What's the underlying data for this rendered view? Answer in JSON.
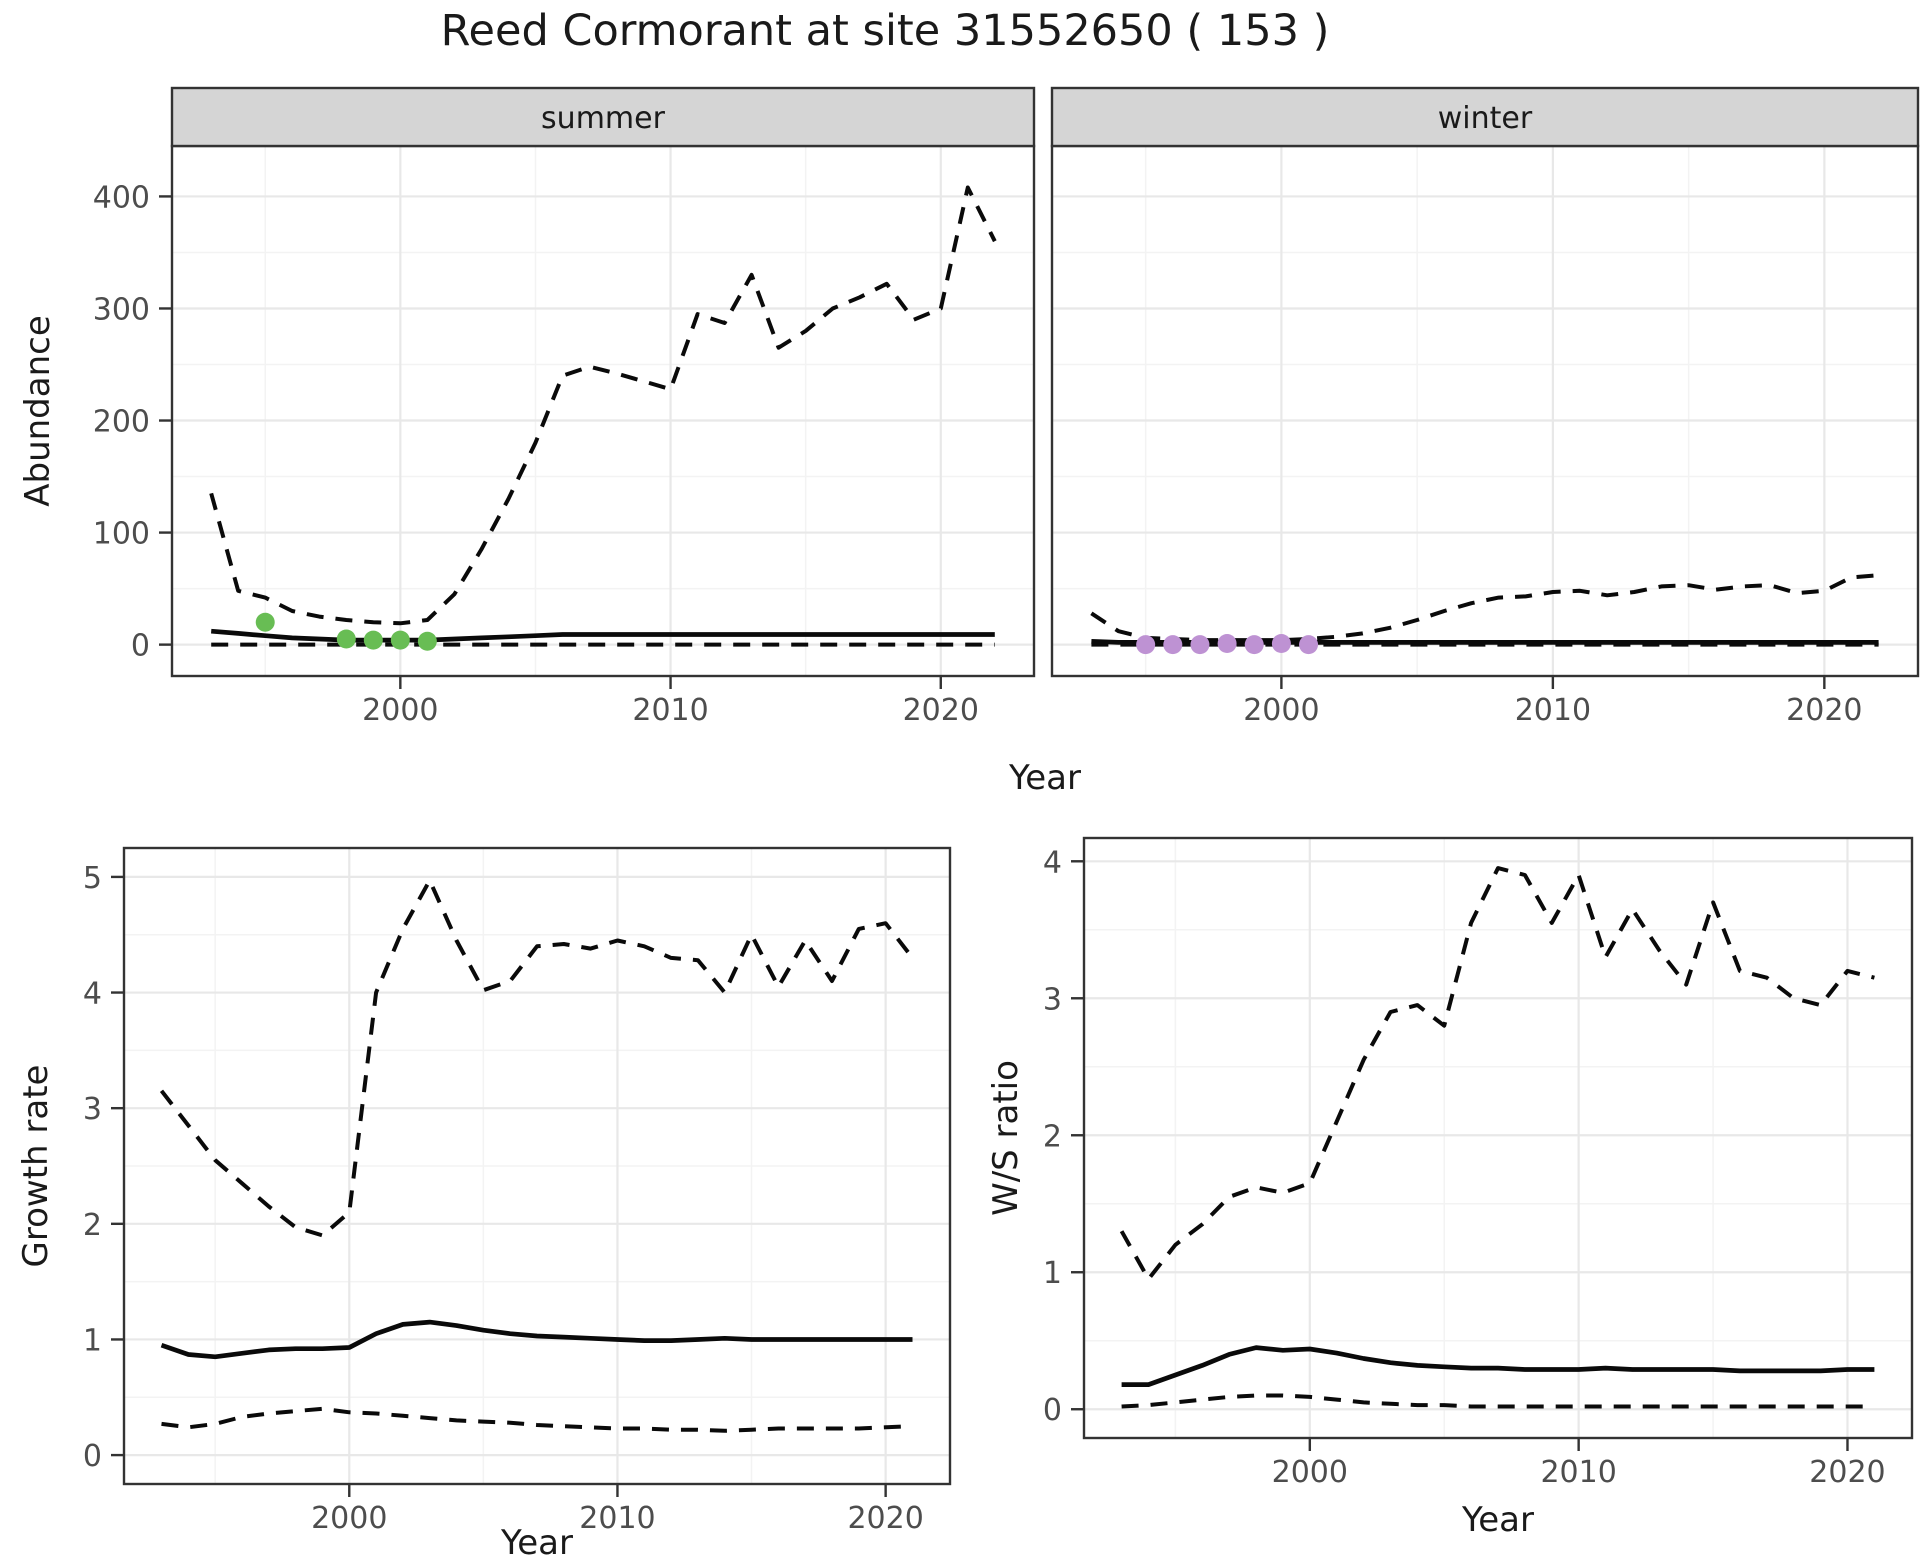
{
  "title": "Reed Cormorant at site 31552650 ( 153 )",
  "top_row": {
    "ylabel": "Abundance",
    "xlabel": "Year",
    "facets": [
      "summer",
      "winter"
    ]
  },
  "bottom_left": {
    "ylabel": "Growth rate",
    "xlabel": "Year"
  },
  "bottom_right": {
    "ylabel": "W/S ratio",
    "xlabel": "Year"
  },
  "colors": {
    "green_points": "#68BD54",
    "purple_points": "#BE92D3",
    "line": "#0a0a0a",
    "strip_bg": "#D5D5D5",
    "panel_border": "#333333",
    "grid_major": "#E8E8E8",
    "grid_minor": "#F3F3F3",
    "tick_text": "#4D4D4D",
    "title_text": "#1A1A1A"
  },
  "chart_data": [
    {
      "id": "abundance_summer",
      "type": "line",
      "facet": "summer",
      "ylabel": "Abundance",
      "xlabel": "Year",
      "xlim": [
        1991.55,
        2023.45
      ],
      "ylim": [
        -28,
        445
      ],
      "x_ticks": [
        2000,
        2010,
        2020
      ],
      "x_minor": [
        1995,
        2005,
        2015
      ],
      "y_ticks": [
        0,
        100,
        200,
        300,
        400
      ],
      "y_minor": [
        50,
        150,
        250,
        350
      ],
      "x": [
        1993,
        1994,
        1995,
        1996,
        1997,
        1998,
        1999,
        2000,
        2001,
        2002,
        2003,
        2004,
        2005,
        2006,
        2007,
        2008,
        2009,
        2010,
        2011,
        2012,
        2013,
        2014,
        2015,
        2016,
        2017,
        2018,
        2019,
        2020,
        2021,
        2022
      ],
      "series": [
        {
          "name": "upper-ci",
          "style": "dashed",
          "values": [
            135,
            48,
            42,
            30,
            25,
            22,
            20,
            19,
            22,
            45,
            85,
            130,
            180,
            240,
            248,
            242,
            235,
            228,
            295,
            287,
            330,
            265,
            280,
            300,
            310,
            322,
            290,
            300,
            408,
            360
          ]
        },
        {
          "name": "median",
          "style": "solid",
          "values": [
            12,
            10,
            8,
            6,
            5,
            4,
            4,
            4,
            4,
            5,
            6,
            7,
            8,
            9,
            9,
            9,
            9,
            9,
            9,
            9,
            9,
            9,
            9,
            9,
            9,
            9,
            9,
            9,
            9,
            9
          ]
        },
        {
          "name": "lower-ci",
          "style": "dashed",
          "values": [
            0,
            0,
            0,
            0,
            0,
            0,
            0,
            0,
            0,
            0,
            0,
            0,
            0,
            0,
            0,
            0,
            0,
            0,
            0,
            0,
            0,
            0,
            0,
            0,
            0,
            0,
            0,
            0,
            0,
            0
          ]
        }
      ],
      "points": {
        "name": "observed-counts-summer",
        "color_key": "green_points",
        "x": [
          1995,
          1998,
          1999,
          2000,
          2001
        ],
        "y": [
          20,
          5,
          4,
          4,
          3
        ]
      }
    },
    {
      "id": "abundance_winter",
      "type": "line",
      "facet": "winter",
      "ylabel": "Abundance",
      "xlabel": "Year",
      "xlim": [
        1991.55,
        2023.45
      ],
      "ylim": [
        -28,
        445
      ],
      "x_ticks": [
        2000,
        2010,
        2020
      ],
      "x_minor": [
        1995,
        2005,
        2015
      ],
      "y_ticks": [
        0,
        100,
        200,
        300,
        400
      ],
      "y_minor": [
        50,
        150,
        250,
        350
      ],
      "x": [
        1993,
        1994,
        1995,
        1996,
        1997,
        1998,
        1999,
        2000,
        2001,
        2002,
        2003,
        2004,
        2005,
        2006,
        2007,
        2008,
        2009,
        2010,
        2011,
        2012,
        2013,
        2014,
        2015,
        2016,
        2017,
        2018,
        2019,
        2020,
        2021,
        2022
      ],
      "series": [
        {
          "name": "upper-ci",
          "style": "dashed",
          "values": [
            28,
            12,
            6,
            5,
            4,
            4,
            4,
            4,
            5,
            7,
            10,
            15,
            22,
            30,
            37,
            42,
            43,
            47,
            48,
            44,
            47,
            52,
            53,
            49,
            52,
            53,
            46,
            48,
            60,
            62
          ]
        },
        {
          "name": "median",
          "style": "solid",
          "values": [
            3,
            2,
            2,
            2,
            2,
            2,
            2,
            2,
            2,
            2,
            2,
            2,
            2,
            2,
            2,
            2,
            2,
            2,
            2,
            2,
            2,
            2,
            2,
            2,
            2,
            2,
            2,
            2,
            2,
            2
          ]
        },
        {
          "name": "lower-ci",
          "style": "dashed",
          "values": [
            0,
            0,
            0,
            0,
            0,
            0,
            0,
            0,
            0,
            0,
            0,
            0,
            0,
            0,
            0,
            0,
            0,
            0,
            0,
            0,
            0,
            0,
            0,
            0,
            0,
            0,
            0,
            0,
            0,
            0
          ]
        }
      ],
      "points": {
        "name": "observed-counts-winter",
        "color_key": "purple_points",
        "x": [
          1995,
          1996,
          1997,
          1998,
          1999,
          2000,
          2001
        ],
        "y": [
          0,
          0,
          0,
          1,
          0,
          1,
          0
        ]
      }
    },
    {
      "id": "growth_rate",
      "type": "line",
      "facet": null,
      "ylabel": "Growth rate",
      "xlabel": "Year",
      "xlim": [
        1991.6,
        2022.4
      ],
      "ylim": [
        -0.25,
        5.25
      ],
      "x_ticks": [
        2000,
        2010,
        2020
      ],
      "x_minor": [
        1995,
        2005,
        2015
      ],
      "y_ticks": [
        0,
        1,
        2,
        3,
        4,
        5
      ],
      "y_minor": [
        0.5,
        1.5,
        2.5,
        3.5,
        4.5
      ],
      "x": [
        1993,
        1994,
        1995,
        1996,
        1997,
        1998,
        1999,
        2000,
        2001,
        2002,
        2003,
        2004,
        2005,
        2006,
        2007,
        2008,
        2009,
        2010,
        2011,
        2012,
        2013,
        2014,
        2015,
        2016,
        2017,
        2018,
        2019,
        2020,
        2021
      ],
      "series": [
        {
          "name": "upper-ci",
          "style": "dashed",
          "values": [
            3.15,
            2.85,
            2.55,
            2.35,
            2.15,
            1.97,
            1.9,
            2.1,
            4.0,
            4.55,
            4.97,
            4.45,
            4.02,
            4.1,
            4.4,
            4.42,
            4.38,
            4.45,
            4.4,
            4.3,
            4.28,
            4.0,
            4.5,
            4.05,
            4.45,
            4.1,
            4.55,
            4.6,
            4.3
          ]
        },
        {
          "name": "median",
          "style": "solid",
          "values": [
            0.95,
            0.87,
            0.85,
            0.88,
            0.91,
            0.92,
            0.92,
            0.93,
            1.05,
            1.13,
            1.15,
            1.12,
            1.08,
            1.05,
            1.03,
            1.02,
            1.01,
            1.0,
            0.99,
            0.99,
            1.0,
            1.01,
            1.0,
            1.0,
            1.0,
            1.0,
            1.0,
            1.0,
            1.0
          ]
        },
        {
          "name": "lower-ci",
          "style": "dashed",
          "values": [
            0.27,
            0.24,
            0.27,
            0.33,
            0.36,
            0.38,
            0.4,
            0.37,
            0.36,
            0.34,
            0.32,
            0.3,
            0.29,
            0.28,
            0.26,
            0.25,
            0.24,
            0.23,
            0.23,
            0.22,
            0.22,
            0.21,
            0.22,
            0.23,
            0.23,
            0.23,
            0.23,
            0.24,
            0.25
          ]
        }
      ]
    },
    {
      "id": "ws_ratio",
      "type": "line",
      "facet": null,
      "ylabel": "W/S ratio",
      "xlabel": "Year",
      "xlim": [
        1991.6,
        2022.4
      ],
      "ylim": [
        -0.21,
        4.17
      ],
      "x_ticks": [
        2000,
        2010,
        2020
      ],
      "x_minor": [
        1995,
        2005,
        2015
      ],
      "y_ticks": [
        0,
        1,
        2,
        3,
        4
      ],
      "y_minor": [
        0.5,
        1.5,
        2.5,
        3.5
      ],
      "x": [
        1993,
        1994,
        1995,
        1996,
        1997,
        1998,
        1999,
        2000,
        2001,
        2002,
        2003,
        2004,
        2005,
        2006,
        2007,
        2008,
        2009,
        2010,
        2011,
        2012,
        2013,
        2014,
        2015,
        2016,
        2017,
        2018,
        2019,
        2020,
        2021
      ],
      "series": [
        {
          "name": "upper-ci",
          "style": "dashed",
          "values": [
            1.3,
            0.95,
            1.2,
            1.35,
            1.55,
            1.62,
            1.58,
            1.65,
            2.1,
            2.55,
            2.9,
            2.95,
            2.8,
            3.55,
            3.95,
            3.9,
            3.55,
            3.9,
            3.3,
            3.65,
            3.35,
            3.1,
            3.7,
            3.2,
            3.15,
            3.0,
            2.95,
            3.2,
            3.15
          ]
        },
        {
          "name": "median",
          "style": "solid",
          "values": [
            0.18,
            0.18,
            0.25,
            0.32,
            0.4,
            0.45,
            0.43,
            0.44,
            0.41,
            0.37,
            0.34,
            0.32,
            0.31,
            0.3,
            0.3,
            0.29,
            0.29,
            0.29,
            0.3,
            0.29,
            0.29,
            0.29,
            0.29,
            0.28,
            0.28,
            0.28,
            0.28,
            0.29,
            0.29
          ]
        },
        {
          "name": "lower-ci",
          "style": "dashed",
          "values": [
            0.02,
            0.03,
            0.05,
            0.07,
            0.09,
            0.1,
            0.1,
            0.09,
            0.07,
            0.05,
            0.04,
            0.03,
            0.03,
            0.02,
            0.02,
            0.02,
            0.02,
            0.02,
            0.02,
            0.02,
            0.02,
            0.02,
            0.02,
            0.02,
            0.02,
            0.02,
            0.02,
            0.02,
            0.02
          ]
        }
      ]
    }
  ]
}
